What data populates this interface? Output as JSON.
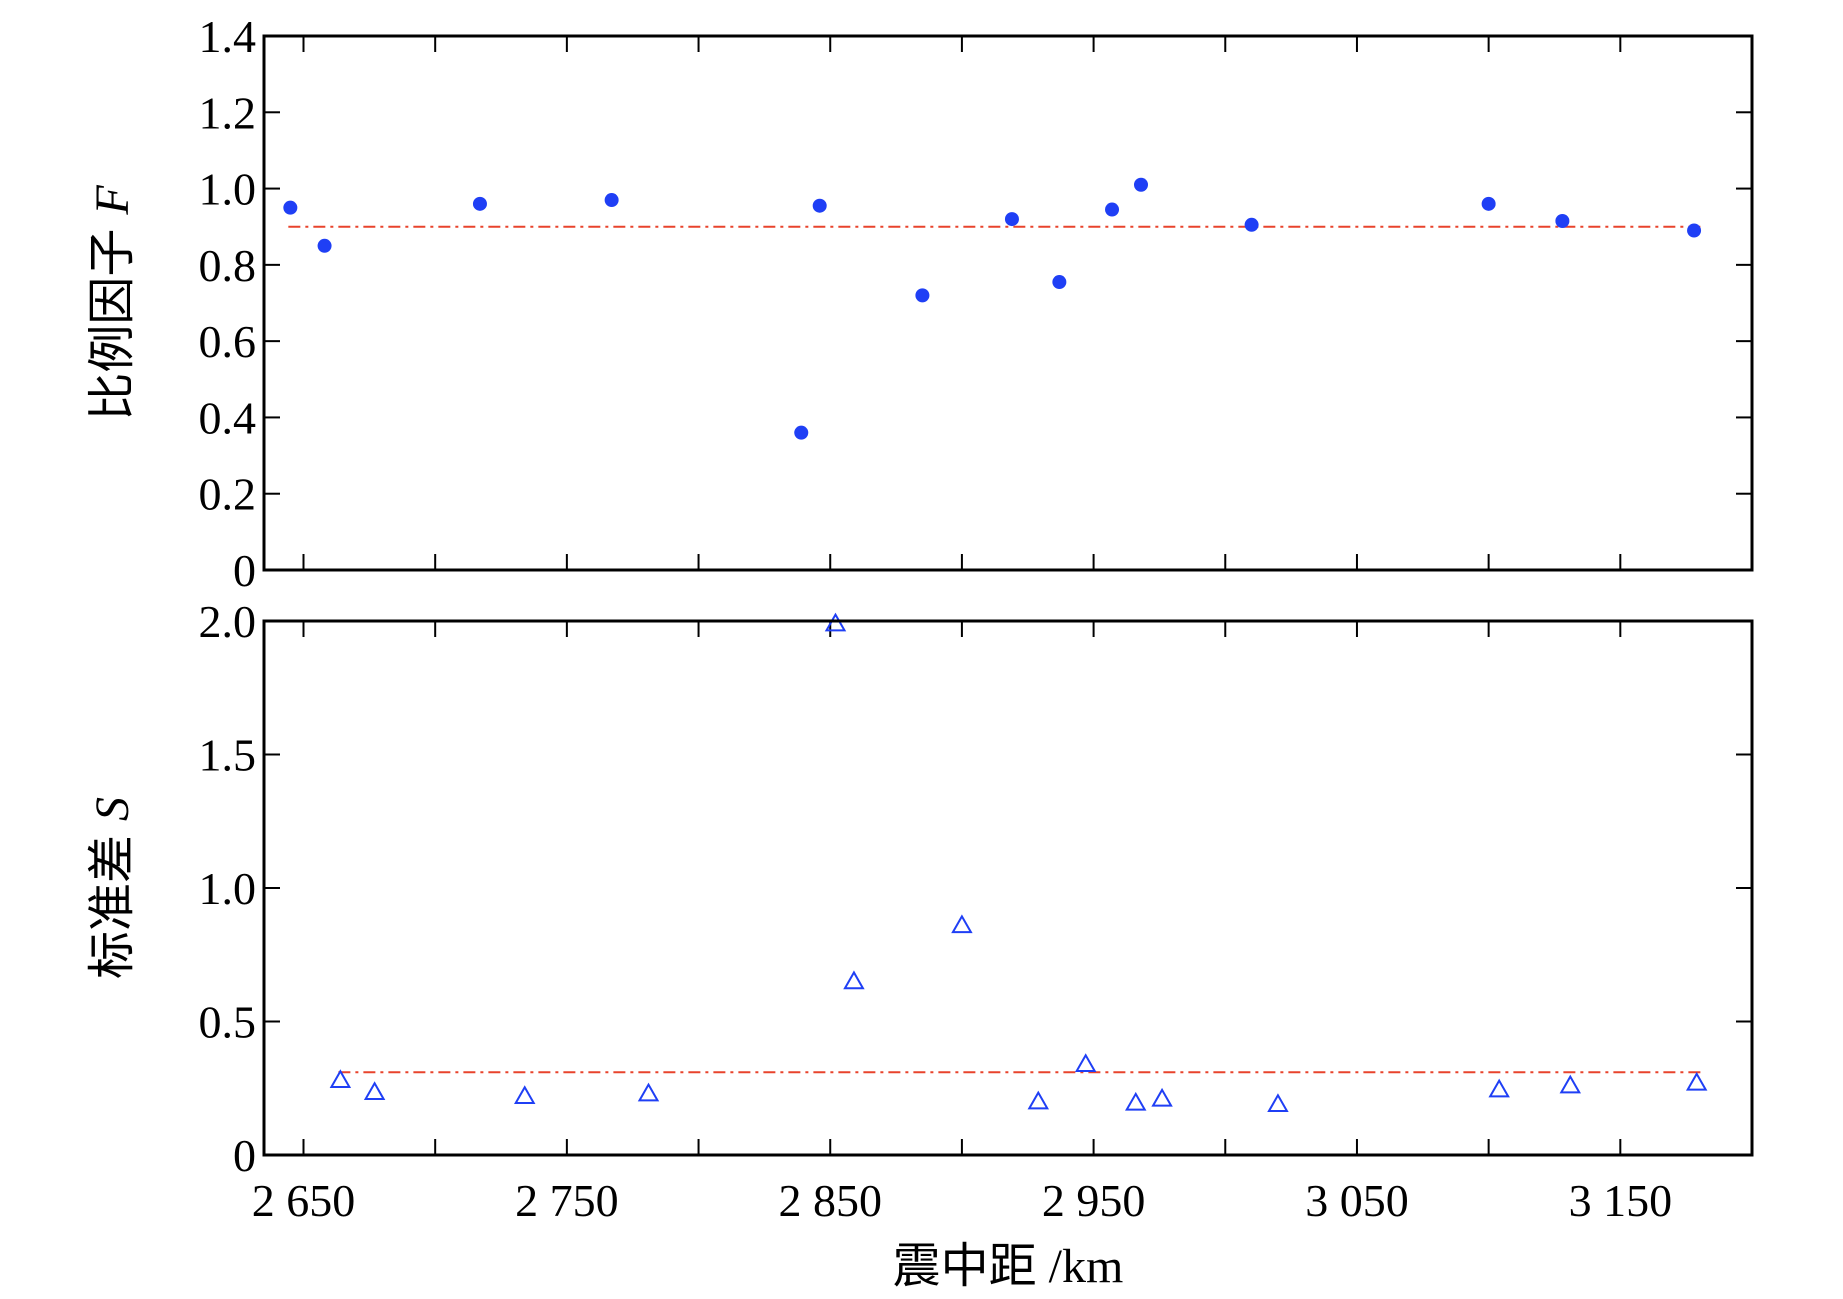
{
  "chart_data": [
    {
      "type": "scatter",
      "panel": "top",
      "title": "",
      "xlabel": "",
      "ylabel": "比例因子 F",
      "ylabel_text": "比例因子",
      "ylabel_symbol": "F",
      "xlim": [
        2635,
        3200
      ],
      "ylim": [
        0,
        1.4
      ],
      "yticks": [
        0,
        0.2,
        0.4,
        0.6,
        0.8,
        1.0,
        1.2,
        1.4
      ],
      "ytick_labels": [
        "0",
        "0.2",
        "0.4",
        "0.6",
        "0.8",
        "1.0",
        "1.2",
        "1.4"
      ],
      "marker": "filled-circle",
      "marker_color": "#1f3ff5",
      "x": [
        2645,
        2658,
        2717,
        2767,
        2839,
        2846,
        2885,
        2919,
        2937,
        2957,
        2968,
        3010,
        3100,
        3128,
        3178
      ],
      "y": [
        0.95,
        0.85,
        0.96,
        0.97,
        0.36,
        0.955,
        0.72,
        0.92,
        0.755,
        0.945,
        1.01,
        0.905,
        0.96,
        0.915,
        0.89
      ],
      "reference_line": {
        "y": 0.9,
        "style": "dash-dot",
        "color": "#e8432c"
      },
      "grid": false
    },
    {
      "type": "scatter",
      "panel": "bottom",
      "title": "",
      "xlabel": "震中距 /km",
      "ylabel": "标准差 S",
      "ylabel_text": "标准差",
      "ylabel_symbol": "S",
      "xlim": [
        2635,
        3200
      ],
      "ylim": [
        0,
        2.0
      ],
      "yticks": [
        0,
        0.5,
        1.0,
        1.5,
        2.0
      ],
      "ytick_labels": [
        "0",
        "0.5",
        "1.0",
        "1.5",
        "2.0"
      ],
      "xticks": [
        2650,
        2750,
        2850,
        2950,
        3050,
        3150
      ],
      "xtick_labels": [
        "2 650",
        "2 750",
        "2 850",
        "2 950",
        "3 050",
        "3 150"
      ],
      "marker": "open-triangle",
      "marker_color": "#1f3ff5",
      "x": [
        2664,
        2677,
        2734,
        2781,
        2852,
        2859,
        2900,
        2929,
        2947,
        2966,
        2976,
        3020,
        3104,
        3131,
        3179
      ],
      "y": [
        0.28,
        0.235,
        0.22,
        0.23,
        1.99,
        0.65,
        0.86,
        0.2,
        0.34,
        0.195,
        0.21,
        0.19,
        0.245,
        0.26,
        0.27
      ],
      "reference_line": {
        "y": 0.31,
        "style": "dash-dot",
        "color": "#e8432c"
      },
      "grid": false
    }
  ]
}
